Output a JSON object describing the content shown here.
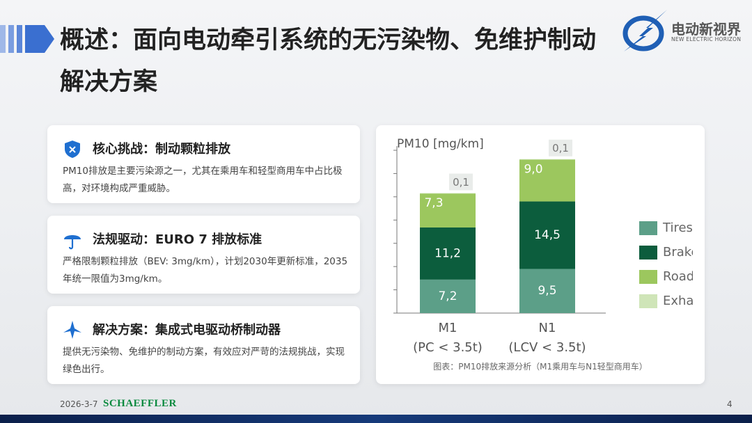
{
  "header": {
    "title": "概述：面向电动牵引系统的无污染物、免维护制动解决方案",
    "logo_name": "电动新视界",
    "logo_subtitle": "NEW ELECTRIC HORIZON"
  },
  "cards": [
    {
      "title": "核心挑战：制动颗粒排放",
      "body": "PM10排放是主要污染源之一，尤其在乘用车和轻型商用车中占比极高，对环境构成严重威胁。"
    },
    {
      "title": "法规驱动：EURO 7 排放标准",
      "body": "严格限制颗粒排放（BEV: 3mg/km），计划2030年更新标准，2035年统一限值为3mg/km。"
    },
    {
      "title": "解决方案：集成式电驱动桥制动器",
      "body": "提供无污染物、免维护的制动方案，有效应对严苛的法规挑战，实现绿色出行。"
    }
  ],
  "chart_data": {
    "type": "stacked_bar",
    "y_label": "PM10 [mg/km]",
    "caption": "图表：PM10排放来源分析（M1乘用车与N1轻型商用车）",
    "categories": [
      "M1",
      "N1"
    ],
    "category_sublabels": [
      "(PC < 3.5t)",
      "(LCV < 3.5t)"
    ],
    "series": [
      {
        "name": "Tires",
        "color": "#5c9f88",
        "values": [
          7.2,
          9.5
        ],
        "value_labels": [
          "7,2",
          "9,5"
        ]
      },
      {
        "name": "Brake",
        "color": "#0c5d3d",
        "values": [
          11.2,
          14.5
        ],
        "value_labels": [
          "11,2",
          "14,5"
        ]
      },
      {
        "name": "Road",
        "color": "#9cc75e",
        "values": [
          7.3,
          9.0
        ],
        "value_labels": [
          "7,3",
          "9,0"
        ]
      },
      {
        "name": "Exha",
        "color": "#cfe5b8",
        "values": [
          0.1,
          0.1
        ],
        "value_labels": [
          "0,1",
          "0,1"
        ]
      }
    ],
    "ylim": [
      0,
      35
    ],
    "yticks": [
      0,
      5,
      10,
      15,
      20,
      25,
      30,
      35
    ]
  },
  "footer": {
    "date": "2026-3-7",
    "brand": "SCHAEFFLER",
    "page": "4"
  }
}
